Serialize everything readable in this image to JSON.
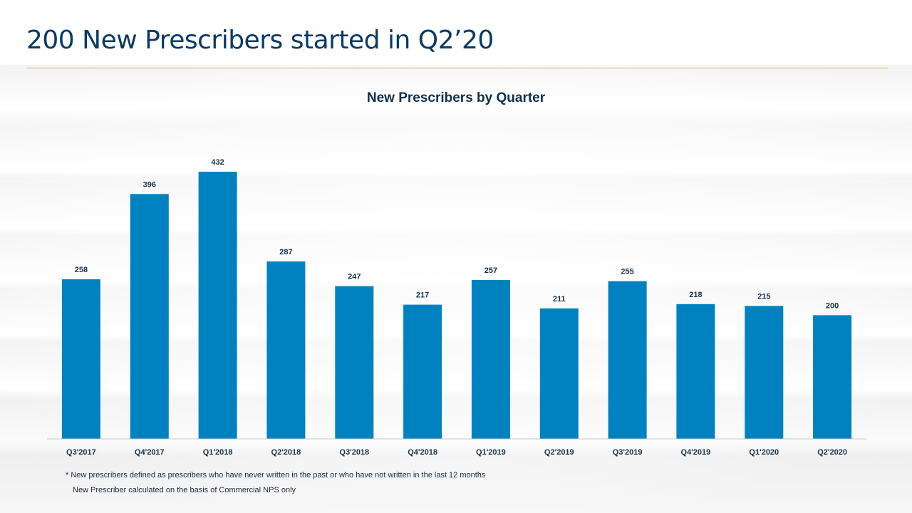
{
  "title": "200 New Prescribers started in Q2’20",
  "footnotes": {
    "definition": "* New prescribers defined as prescribers who have never written in the past or who have not written in the last 12 months",
    "basis": "New Prescriber calculated on the basis of Commercial NPS only"
  },
  "colors": {
    "bar": "#0082c1",
    "title": "#0b3a63",
    "rule": "#d9b84a"
  },
  "chart_data": {
    "type": "bar",
    "title": "New Prescribers by Quarter",
    "xlabel": "",
    "ylabel": "",
    "categories": [
      "Q3'2017",
      "Q4'2017",
      "Q1'2018",
      "Q2'2018",
      "Q3'2018",
      "Q4'2018",
      "Q1'2019",
      "Q2'2019",
      "Q3'2019",
      "Q4'2019",
      "Q1'2020",
      "Q2'2020"
    ],
    "values": [
      258,
      396,
      432,
      287,
      247,
      217,
      257,
      211,
      255,
      218,
      215,
      200
    ],
    "ylim": [
      0,
      432
    ],
    "grid": false,
    "data_labels": true
  }
}
